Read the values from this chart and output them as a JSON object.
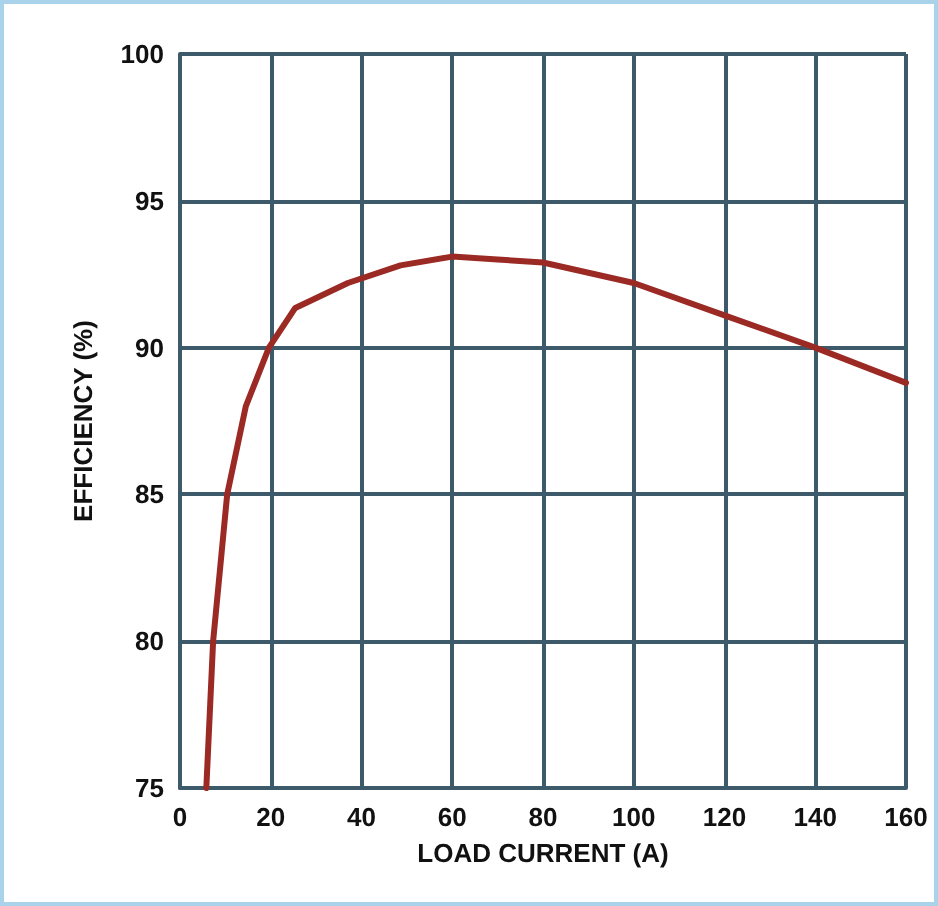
{
  "chart_data": {
    "type": "line",
    "xlabel": "LOAD CURRENT (A)",
    "ylabel": "EFFICIENCY (%)",
    "series": [
      {
        "color": "#9b2a25",
        "x": [
          5.8,
          7.3,
          10.4,
          14.5,
          19.6,
          25.4,
          37,
          48.6,
          60,
          70,
          80,
          100,
          120,
          140,
          160
        ],
        "values": [
          75,
          80,
          85,
          88,
          90,
          91.35,
          92.2,
          92.8,
          93.1,
          93,
          92.9,
          92.2,
          91.1,
          90,
          88.8
        ]
      }
    ],
    "xlim": [
      0,
      160
    ],
    "xticks": [
      0,
      20,
      40,
      60,
      80,
      100,
      120,
      140,
      160
    ],
    "ylim": [
      75,
      100
    ],
    "yticks": [
      75,
      80,
      85,
      90,
      95,
      100
    ],
    "grid": true,
    "marker": "none",
    "line_style": "solid"
  }
}
